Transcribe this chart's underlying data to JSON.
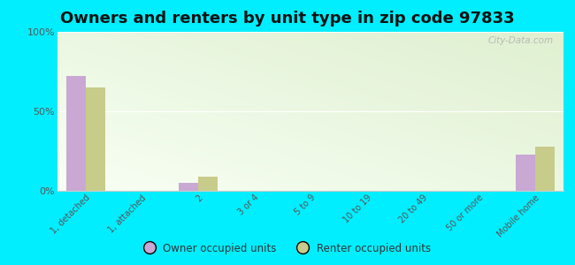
{
  "title": "Owners and renters by unit type in zip code 97833",
  "categories": [
    "1, detached",
    "1, attached",
    "2",
    "3 or 4",
    "5 to 9",
    "10 to 19",
    "20 to 49",
    "50 or more",
    "Mobile home"
  ],
  "owner_values": [
    72,
    0,
    5,
    0,
    0,
    0,
    0,
    0,
    23
  ],
  "renter_values": [
    65,
    0,
    9,
    0,
    0,
    0,
    0,
    0,
    28
  ],
  "owner_color": "#c9a8d4",
  "renter_color": "#c8cc8a",
  "background_color": "#00eeff",
  "ylim": [
    0,
    100
  ],
  "yticks": [
    0,
    50,
    100
  ],
  "ytick_labels": [
    "0%",
    "50%",
    "100%"
  ],
  "watermark": "City-Data.com",
  "legend_owner": "Owner occupied units",
  "legend_renter": "Renter occupied units",
  "title_fontsize": 13,
  "bar_width": 0.35,
  "grad_top_color": "#dff0d0",
  "grad_bottom_color": "#f5fef0"
}
